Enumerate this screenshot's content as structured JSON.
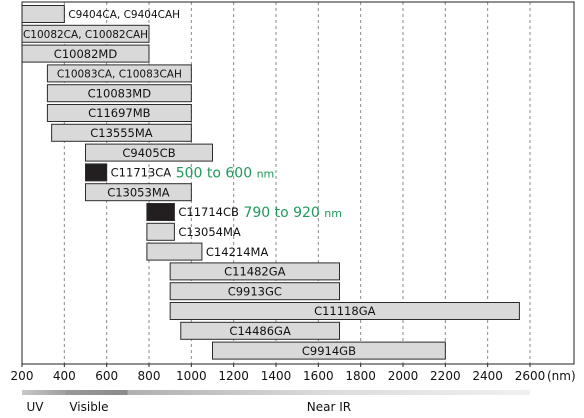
{
  "chart_data": {
    "type": "range-bar",
    "x_axis": {
      "min": 200,
      "max": 2600,
      "ticks": [
        200,
        400,
        600,
        800,
        1000,
        1200,
        1400,
        1600,
        1800,
        2000,
        2200,
        2400,
        2600
      ],
      "unit_label": "(nm)",
      "dashed_gridlines_at": [
        400,
        600,
        800,
        1000,
        1200,
        1400,
        1600,
        1800,
        2000,
        2200,
        2400,
        2600
      ]
    },
    "bands": [
      {
        "label": "UV",
        "start": 200,
        "end": 400
      },
      {
        "label": "Visible",
        "start": 400,
        "end": 700
      },
      {
        "label": "Near IR",
        "start": 700,
        "end": 2600
      }
    ],
    "colors": {
      "bar_fill": "#d9d9d9",
      "bar_fill_solid": "#231f20",
      "bar_stroke": "#2b2b2b",
      "annotation": "#1e9a5a",
      "grid": "#8a8a8a"
    },
    "ranges": [
      {
        "label": "C9404CA, C9404CAH",
        "start": 200,
        "end": 400,
        "label_side": "outside"
      },
      {
        "label": "C10082CA, C10082CAH",
        "start": 200,
        "end": 800,
        "label_side": "inside"
      },
      {
        "label": "C10082MD",
        "start": 200,
        "end": 800,
        "label_side": "inside"
      },
      {
        "label": "C10083CA, C10083CAH",
        "start": 320,
        "end": 1000,
        "label_side": "inside"
      },
      {
        "label": "C10083MD",
        "start": 320,
        "end": 1000,
        "label_side": "inside"
      },
      {
        "label": "C11697MB",
        "start": 320,
        "end": 1000,
        "label_side": "inside"
      },
      {
        "label": "C13555MA",
        "start": 340,
        "end": 1000,
        "label_side": "inside"
      },
      {
        "label": "C9405CB",
        "start": 500,
        "end": 1100,
        "label_side": "inside"
      },
      {
        "label": "C11713CA",
        "start": 500,
        "end": 600,
        "label_side": "outside",
        "solid": true,
        "note": "500 to 600",
        "note_unit": "nm"
      },
      {
        "label": "C13053MA",
        "start": 500,
        "end": 1000,
        "label_side": "inside"
      },
      {
        "label": "C11714CB",
        "start": 790,
        "end": 920,
        "label_side": "outside",
        "solid": true,
        "note": "790 to 920",
        "note_unit": "nm"
      },
      {
        "label": "C13054MA",
        "start": 790,
        "end": 920,
        "label_side": "outside"
      },
      {
        "label": "C14214MA",
        "start": 790,
        "end": 1050,
        "label_side": "outside"
      },
      {
        "label": "C11482GA",
        "start": 900,
        "end": 1700,
        "label_side": "inside"
      },
      {
        "label": "C9913GC",
        "start": 900,
        "end": 1700,
        "label_side": "inside"
      },
      {
        "label": "C11118GA",
        "start": 900,
        "end": 2550,
        "label_side": "inside"
      },
      {
        "label": "C14486GA",
        "start": 950,
        "end": 1700,
        "label_side": "inside"
      },
      {
        "label": "C9914GB",
        "start": 1100,
        "end": 2200,
        "label_side": "inside"
      }
    ]
  }
}
